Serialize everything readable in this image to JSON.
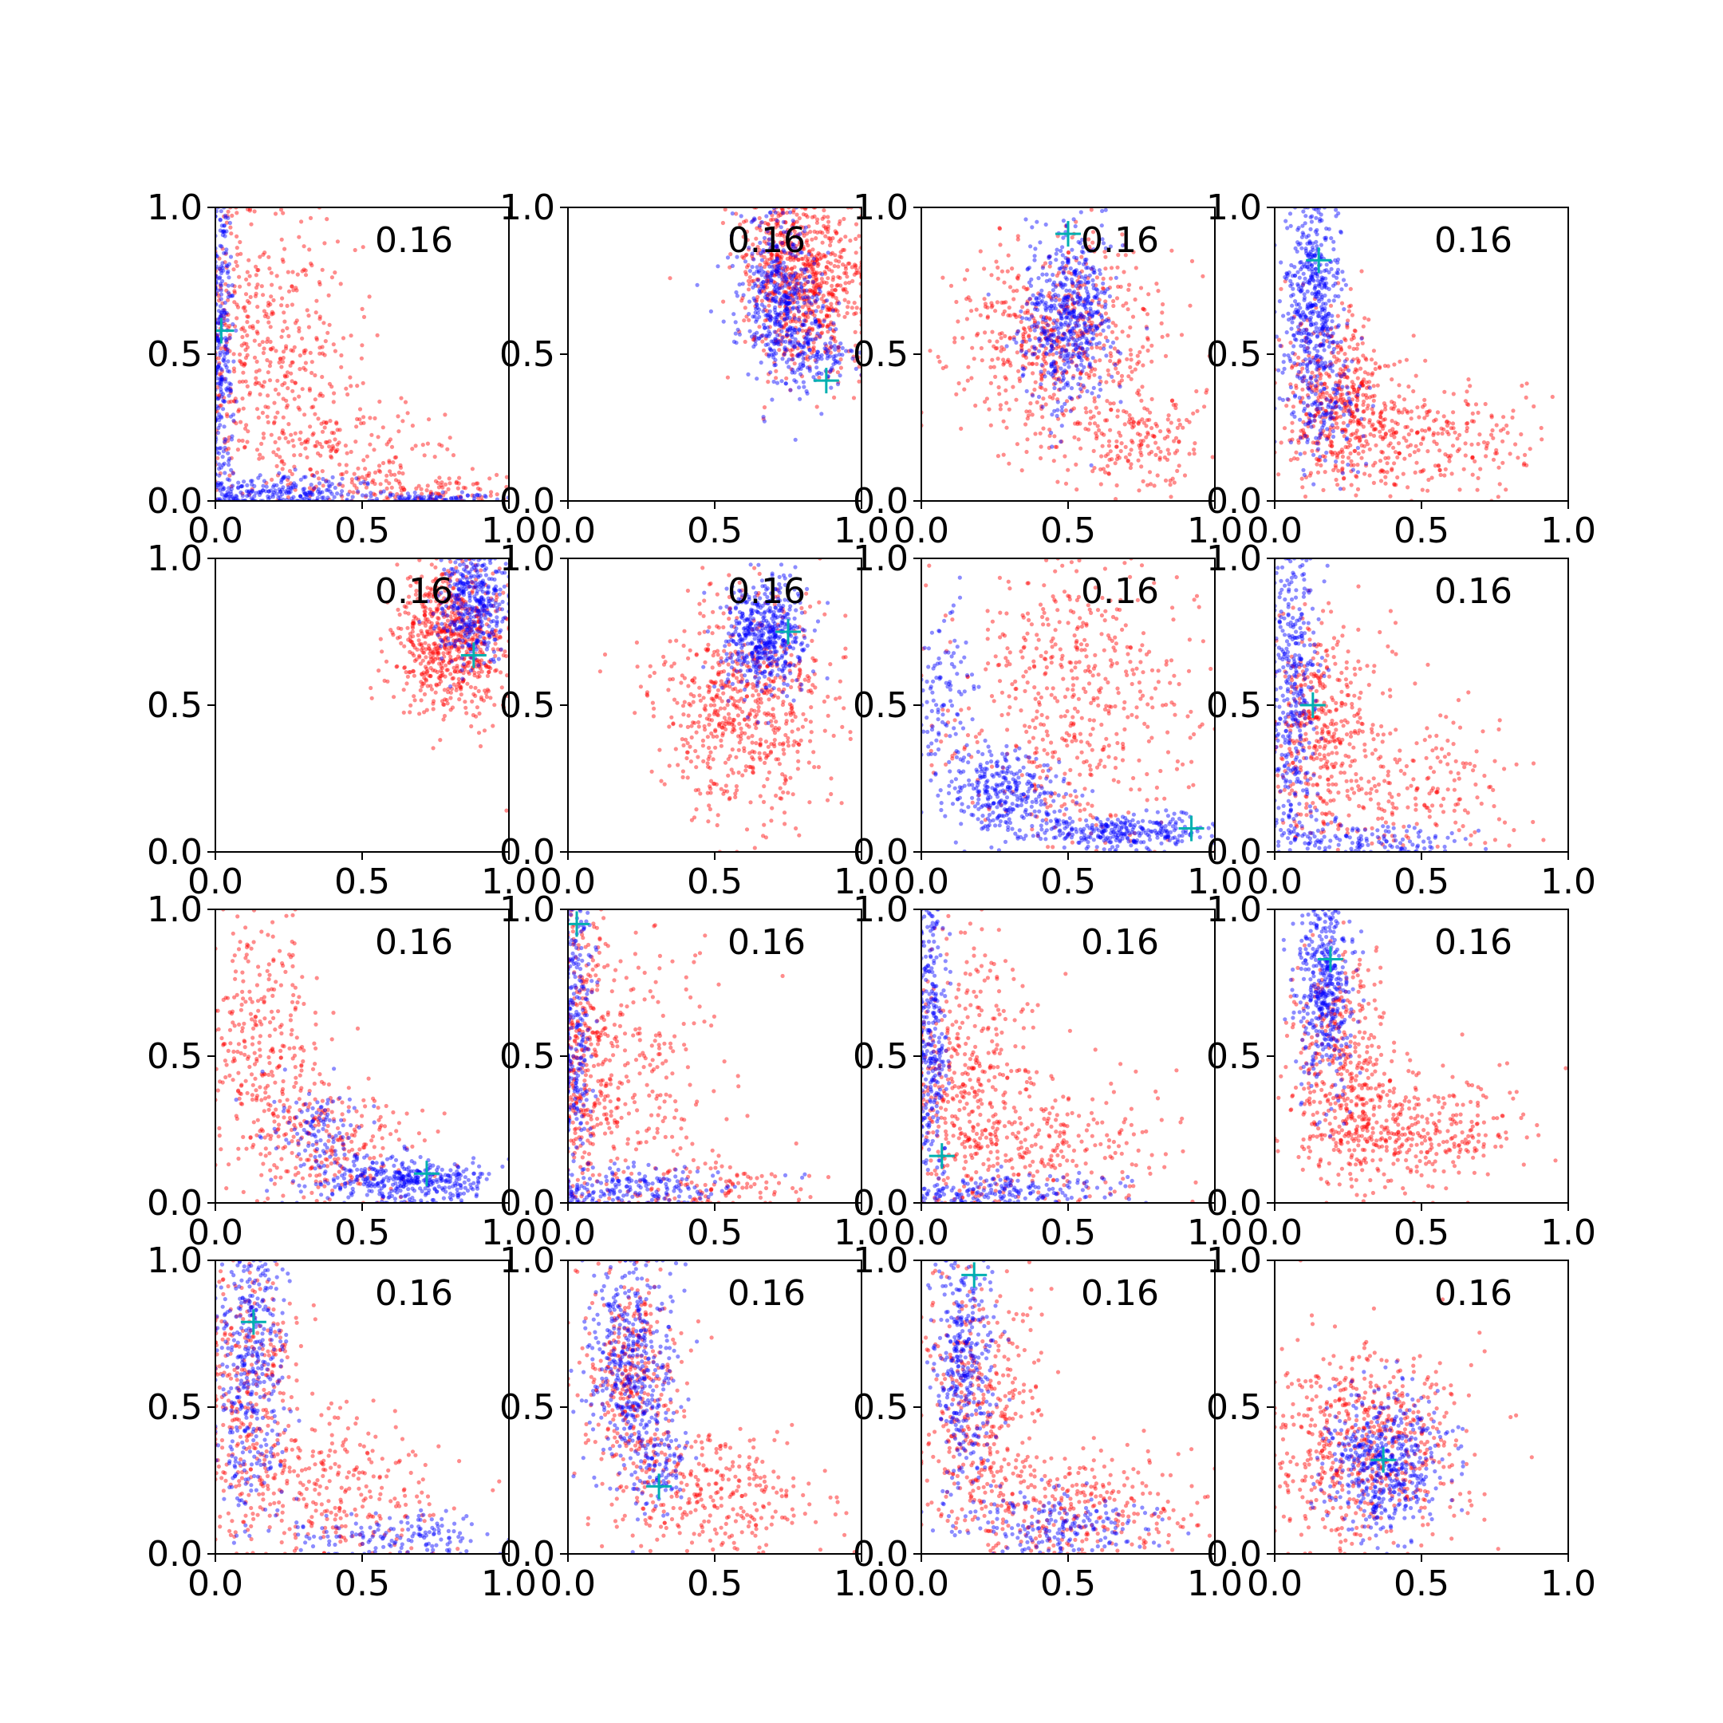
{
  "figure": {
    "rows": 4,
    "cols": 4,
    "series_colors": {
      "red": "#ff0000",
      "blue": "#0000ff",
      "marker": "#00b0b0"
    },
    "point_alpha": 0.45,
    "marker_symbol": "+"
  },
  "chart_data": [
    {
      "type": "scatter",
      "annotation": "0.16",
      "xlim": [
        0,
        1
      ],
      "ylim": [
        0,
        1
      ],
      "xticks": [
        "0.0",
        "0.5",
        "1.0"
      ],
      "yticks": [
        "0.0",
        "0.5",
        "1.0"
      ],
      "marker": [
        0.02,
        0.58
      ],
      "red_clusters": [
        {
          "cx": 0.05,
          "cy": 0.6,
          "sx": 0.05,
          "sy": 0.3,
          "n": 150
        },
        {
          "cx": 0.22,
          "cy": 0.5,
          "sx": 0.13,
          "sy": 0.22,
          "n": 350
        },
        {
          "cx": 0.45,
          "cy": 0.15,
          "sx": 0.2,
          "sy": 0.1,
          "n": 200
        },
        {
          "cx": 0.8,
          "cy": 0.03,
          "sx": 0.15,
          "sy": 0.03,
          "n": 90
        }
      ],
      "blue_clusters": [
        {
          "cx": 0.02,
          "cy": 0.5,
          "sx": 0.02,
          "sy": 0.35,
          "n": 320
        },
        {
          "cx": 0.2,
          "cy": 0.03,
          "sx": 0.18,
          "sy": 0.03,
          "n": 260
        },
        {
          "cx": 0.75,
          "cy": 0.01,
          "sx": 0.15,
          "sy": 0.01,
          "n": 80
        }
      ]
    },
    {
      "type": "scatter",
      "annotation": "0.16",
      "xlim": [
        0,
        1
      ],
      "ylim": [
        0,
        1
      ],
      "xticks": [
        "0.0",
        "0.5",
        "1.0"
      ],
      "yticks": [
        "0.0",
        "0.5",
        "1.0"
      ],
      "marker": [
        0.88,
        0.41
      ],
      "red_clusters": [
        {
          "cx": 0.83,
          "cy": 0.72,
          "sx": 0.1,
          "sy": 0.15,
          "n": 650
        },
        {
          "cx": 0.7,
          "cy": 0.85,
          "sx": 0.08,
          "sy": 0.1,
          "n": 150
        }
      ],
      "blue_clusters": [
        {
          "cx": 0.72,
          "cy": 0.68,
          "sx": 0.07,
          "sy": 0.14,
          "n": 450
        },
        {
          "cx": 0.85,
          "cy": 0.5,
          "sx": 0.07,
          "sy": 0.06,
          "n": 120
        }
      ]
    },
    {
      "type": "scatter",
      "annotation": "0.16",
      "xlim": [
        0,
        1
      ],
      "ylim": [
        0,
        1
      ],
      "xticks": [
        "0.0",
        "0.5",
        "1.0"
      ],
      "yticks": [
        "0.0",
        "0.5",
        "1.0"
      ],
      "marker": [
        0.5,
        0.91
      ],
      "red_clusters": [
        {
          "cx": 0.45,
          "cy": 0.55,
          "sx": 0.18,
          "sy": 0.18,
          "n": 600
        },
        {
          "cx": 0.75,
          "cy": 0.2,
          "sx": 0.12,
          "sy": 0.1,
          "n": 180
        }
      ],
      "blue_clusters": [
        {
          "cx": 0.5,
          "cy": 0.62,
          "sx": 0.08,
          "sy": 0.15,
          "n": 550
        }
      ]
    },
    {
      "type": "scatter",
      "annotation": "0.16",
      "xlim": [
        0,
        1
      ],
      "ylim": [
        0,
        1
      ],
      "xticks": [
        "0.0",
        "0.5",
        "1.0"
      ],
      "yticks": [
        "0.0",
        "0.5",
        "1.0"
      ],
      "marker": [
        0.15,
        0.82
      ],
      "red_clusters": [
        {
          "cx": 0.22,
          "cy": 0.35,
          "sx": 0.1,
          "sy": 0.15,
          "n": 450
        },
        {
          "cx": 0.5,
          "cy": 0.2,
          "sx": 0.2,
          "sy": 0.1,
          "n": 300
        }
      ],
      "blue_clusters": [
        {
          "cx": 0.13,
          "cy": 0.7,
          "sx": 0.05,
          "sy": 0.2,
          "n": 500
        },
        {
          "cx": 0.18,
          "cy": 0.3,
          "sx": 0.07,
          "sy": 0.1,
          "n": 120
        }
      ]
    },
    {
      "type": "scatter",
      "annotation": "0.16",
      "xlim": [
        0,
        1
      ],
      "ylim": [
        0,
        1
      ],
      "xticks": [
        "0.0",
        "0.5",
        "1.0"
      ],
      "yticks": [
        "0.0",
        "0.5",
        "1.0"
      ],
      "marker": [
        0.88,
        0.67
      ],
      "red_clusters": [
        {
          "cx": 0.8,
          "cy": 0.72,
          "sx": 0.1,
          "sy": 0.13,
          "n": 700
        }
      ],
      "blue_clusters": [
        {
          "cx": 0.88,
          "cy": 0.85,
          "sx": 0.06,
          "sy": 0.1,
          "n": 400
        }
      ]
    },
    {
      "type": "scatter",
      "annotation": "0.16",
      "xlim": [
        0,
        1
      ],
      "ylim": [
        0,
        1
      ],
      "xticks": [
        "0.0",
        "0.5",
        "1.0"
      ],
      "yticks": [
        "0.0",
        "0.5",
        "1.0"
      ],
      "marker": [
        0.75,
        0.75
      ],
      "red_clusters": [
        {
          "cx": 0.6,
          "cy": 0.5,
          "sx": 0.15,
          "sy": 0.18,
          "n": 650
        }
      ],
      "blue_clusters": [
        {
          "cx": 0.67,
          "cy": 0.74,
          "sx": 0.07,
          "sy": 0.1,
          "n": 500
        }
      ]
    },
    {
      "type": "scatter",
      "annotation": "0.16",
      "xlim": [
        0,
        1
      ],
      "ylim": [
        0,
        1
      ],
      "xticks": [
        "0.0",
        "0.5",
        "1.0"
      ],
      "yticks": [
        "0.0",
        "0.5",
        "1.0"
      ],
      "marker": [
        0.92,
        0.08
      ],
      "red_clusters": [
        {
          "cx": 0.5,
          "cy": 0.5,
          "sx": 0.22,
          "sy": 0.25,
          "n": 550
        }
      ],
      "blue_clusters": [
        {
          "cx": 0.3,
          "cy": 0.2,
          "sx": 0.1,
          "sy": 0.07,
          "n": 300
        },
        {
          "cx": 0.7,
          "cy": 0.07,
          "sx": 0.15,
          "sy": 0.03,
          "n": 300
        },
        {
          "cx": 0.08,
          "cy": 0.5,
          "sx": 0.05,
          "sy": 0.2,
          "n": 120
        }
      ]
    },
    {
      "type": "scatter",
      "annotation": "0.16",
      "xlim": [
        0,
        1
      ],
      "ylim": [
        0,
        1
      ],
      "xticks": [
        "0.0",
        "0.5",
        "1.0"
      ],
      "yticks": [
        "0.0",
        "0.5",
        "1.0"
      ],
      "marker": [
        0.13,
        0.5
      ],
      "red_clusters": [
        {
          "cx": 0.15,
          "cy": 0.4,
          "sx": 0.1,
          "sy": 0.2,
          "n": 400
        },
        {
          "cx": 0.45,
          "cy": 0.2,
          "sx": 0.2,
          "sy": 0.15,
          "n": 250
        }
      ],
      "blue_clusters": [
        {
          "cx": 0.06,
          "cy": 0.55,
          "sx": 0.04,
          "sy": 0.3,
          "n": 400
        },
        {
          "cx": 0.3,
          "cy": 0.04,
          "sx": 0.2,
          "sy": 0.03,
          "n": 150
        }
      ]
    },
    {
      "type": "scatter",
      "annotation": "0.16",
      "xlim": [
        0,
        1
      ],
      "ylim": [
        0,
        1
      ],
      "xticks": [
        "0.0",
        "0.5",
        "1.0"
      ],
      "yticks": [
        "0.0",
        "0.5",
        "1.0"
      ],
      "marker": [
        0.72,
        0.1
      ],
      "red_clusters": [
        {
          "cx": 0.15,
          "cy": 0.55,
          "sx": 0.1,
          "sy": 0.22,
          "n": 300
        },
        {
          "cx": 0.4,
          "cy": 0.2,
          "sx": 0.15,
          "sy": 0.1,
          "n": 250
        }
      ],
      "blue_clusters": [
        {
          "cx": 0.65,
          "cy": 0.08,
          "sx": 0.15,
          "sy": 0.04,
          "n": 400
        },
        {
          "cx": 0.35,
          "cy": 0.25,
          "sx": 0.08,
          "sy": 0.08,
          "n": 100
        }
      ]
    },
    {
      "type": "scatter",
      "annotation": "0.16",
      "xlim": [
        0,
        1
      ],
      "ylim": [
        0,
        1
      ],
      "xticks": [
        "0.0",
        "0.5",
        "1.0"
      ],
      "yticks": [
        "0.0",
        "0.5",
        "1.0"
      ],
      "marker": [
        0.03,
        0.95
      ],
      "red_clusters": [
        {
          "cx": 0.05,
          "cy": 0.5,
          "sx": 0.05,
          "sy": 0.28,
          "n": 300
        },
        {
          "cx": 0.22,
          "cy": 0.4,
          "sx": 0.15,
          "sy": 0.25,
          "n": 300
        },
        {
          "cx": 0.5,
          "cy": 0.05,
          "sx": 0.2,
          "sy": 0.05,
          "n": 120
        }
      ],
      "blue_clusters": [
        {
          "cx": 0.03,
          "cy": 0.6,
          "sx": 0.03,
          "sy": 0.3,
          "n": 300
        },
        {
          "cx": 0.2,
          "cy": 0.05,
          "sx": 0.18,
          "sy": 0.04,
          "n": 200
        }
      ]
    },
    {
      "type": "scatter",
      "annotation": "0.16",
      "xlim": [
        0,
        1
      ],
      "ylim": [
        0,
        1
      ],
      "xticks": [
        "0.0",
        "0.5",
        "1.0"
      ],
      "yticks": [
        "0.0",
        "0.5",
        "1.0"
      ],
      "marker": [
        0.07,
        0.16
      ],
      "red_clusters": [
        {
          "cx": 0.15,
          "cy": 0.4,
          "sx": 0.12,
          "sy": 0.25,
          "n": 450
        },
        {
          "cx": 0.45,
          "cy": 0.2,
          "sx": 0.2,
          "sy": 0.12,
          "n": 250
        }
      ],
      "blue_clusters": [
        {
          "cx": 0.03,
          "cy": 0.6,
          "sx": 0.03,
          "sy": 0.3,
          "n": 350
        },
        {
          "cx": 0.25,
          "cy": 0.04,
          "sx": 0.2,
          "sy": 0.03,
          "n": 200
        }
      ]
    },
    {
      "type": "scatter",
      "annotation": "0.16",
      "xlim": [
        0,
        1
      ],
      "ylim": [
        0,
        1
      ],
      "xticks": [
        "0.0",
        "0.5",
        "1.0"
      ],
      "yticks": [
        "0.0",
        "0.5",
        "1.0"
      ],
      "marker": [
        0.19,
        0.83
      ],
      "red_clusters": [
        {
          "cx": 0.22,
          "cy": 0.5,
          "sx": 0.08,
          "sy": 0.18,
          "n": 350
        },
        {
          "cx": 0.45,
          "cy": 0.25,
          "sx": 0.18,
          "sy": 0.1,
          "n": 400
        }
      ],
      "blue_clusters": [
        {
          "cx": 0.17,
          "cy": 0.75,
          "sx": 0.05,
          "sy": 0.18,
          "n": 450
        }
      ]
    },
    {
      "type": "scatter",
      "annotation": "0.16",
      "xlim": [
        0,
        1
      ],
      "ylim": [
        0,
        1
      ],
      "xticks": [
        "0.0",
        "0.5",
        "1.0"
      ],
      "yticks": [
        "0.0",
        "0.5",
        "1.0"
      ],
      "marker": [
        0.13,
        0.79
      ],
      "red_clusters": [
        {
          "cx": 0.12,
          "cy": 0.55,
          "sx": 0.08,
          "sy": 0.25,
          "n": 350
        },
        {
          "cx": 0.4,
          "cy": 0.2,
          "sx": 0.2,
          "sy": 0.15,
          "n": 300
        }
      ],
      "blue_clusters": [
        {
          "cx": 0.12,
          "cy": 0.65,
          "sx": 0.06,
          "sy": 0.25,
          "n": 400
        },
        {
          "cx": 0.6,
          "cy": 0.05,
          "sx": 0.2,
          "sy": 0.04,
          "n": 150
        }
      ]
    },
    {
      "type": "scatter",
      "annotation": "0.16",
      "xlim": [
        0,
        1
      ],
      "ylim": [
        0,
        1
      ],
      "xticks": [
        "0.0",
        "0.5",
        "1.0"
      ],
      "yticks": [
        "0.0",
        "0.5",
        "1.0"
      ],
      "marker": [
        0.31,
        0.23
      ],
      "red_clusters": [
        {
          "cx": 0.22,
          "cy": 0.6,
          "sx": 0.08,
          "sy": 0.18,
          "n": 350
        },
        {
          "cx": 0.5,
          "cy": 0.2,
          "sx": 0.18,
          "sy": 0.1,
          "n": 300
        }
      ],
      "blue_clusters": [
        {
          "cx": 0.22,
          "cy": 0.65,
          "sx": 0.07,
          "sy": 0.2,
          "n": 450
        },
        {
          "cx": 0.32,
          "cy": 0.3,
          "sx": 0.05,
          "sy": 0.08,
          "n": 80
        }
      ]
    },
    {
      "type": "scatter",
      "annotation": "0.16",
      "xlim": [
        0,
        1
      ],
      "ylim": [
        0,
        1
      ],
      "xticks": [
        "0.0",
        "0.5",
        "1.0"
      ],
      "yticks": [
        "0.0",
        "0.5",
        "1.0"
      ],
      "marker": [
        0.18,
        0.95
      ],
      "red_clusters": [
        {
          "cx": 0.2,
          "cy": 0.5,
          "sx": 0.1,
          "sy": 0.22,
          "n": 400
        },
        {
          "cx": 0.55,
          "cy": 0.15,
          "sx": 0.2,
          "sy": 0.1,
          "n": 300
        }
      ],
      "blue_clusters": [
        {
          "cx": 0.15,
          "cy": 0.65,
          "sx": 0.05,
          "sy": 0.2,
          "n": 350
        },
        {
          "cx": 0.45,
          "cy": 0.1,
          "sx": 0.18,
          "sy": 0.06,
          "n": 200
        }
      ]
    },
    {
      "type": "scatter",
      "annotation": "0.16",
      "xlim": [
        0,
        1
      ],
      "ylim": [
        0,
        1
      ],
      "xticks": [
        "0.0",
        "0.5",
        "1.0"
      ],
      "yticks": [
        "0.0",
        "0.5",
        "1.0"
      ],
      "marker": [
        0.37,
        0.32
      ],
      "red_clusters": [
        {
          "cx": 0.3,
          "cy": 0.35,
          "sx": 0.18,
          "sy": 0.18,
          "n": 650
        }
      ],
      "blue_clusters": [
        {
          "cx": 0.37,
          "cy": 0.3,
          "sx": 0.1,
          "sy": 0.12,
          "n": 500
        }
      ]
    }
  ]
}
